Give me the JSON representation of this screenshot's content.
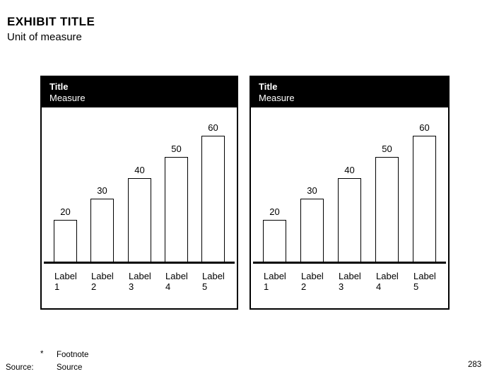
{
  "page": {
    "exhibit_title": "EXHIBIT TITLE",
    "unit_of_measure": "Unit of measure",
    "page_number": "283"
  },
  "footer": {
    "footnote_marker": "*",
    "footnote": "Footnote",
    "source_label": "Source:",
    "source": "Source"
  },
  "colors": {
    "header_bg": "#000000",
    "header_text": "#ffffff",
    "bar_fill": "#ffffff",
    "bar_border": "#000000",
    "axis": "#000000"
  },
  "chart_data": [
    {
      "type": "bar",
      "title": "Title",
      "subtitle": "Measure",
      "categories": [
        "Label 1",
        "Label 2",
        "Label 3",
        "Label 4",
        "Label 5"
      ],
      "values": [
        20,
        30,
        40,
        50,
        60
      ],
      "value_labels": [
        "20",
        "30",
        "40",
        "50",
        "60"
      ],
      "xlabel": "",
      "ylabel": "",
      "ylim": [
        0,
        65
      ],
      "grid": false,
      "legend": false
    },
    {
      "type": "bar",
      "title": "Title",
      "subtitle": "Measure",
      "categories": [
        "Label 1",
        "Label 2",
        "Label 3",
        "Label 4",
        "Label 5"
      ],
      "values": [
        20,
        30,
        40,
        50,
        60
      ],
      "value_labels": [
        "20",
        "30",
        "40",
        "50",
        "60"
      ],
      "xlabel": "",
      "ylabel": "",
      "ylim": [
        0,
        65
      ],
      "grid": false,
      "legend": false
    }
  ]
}
